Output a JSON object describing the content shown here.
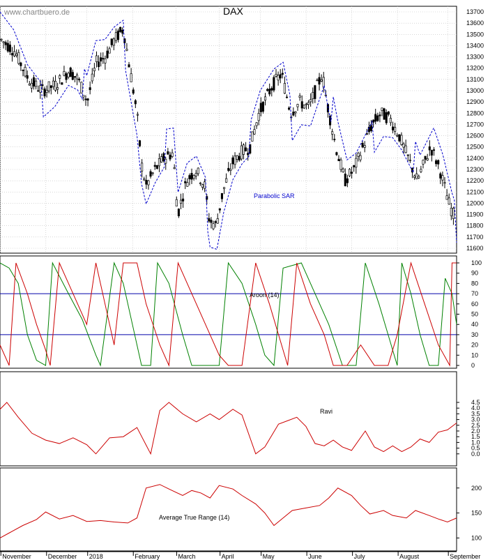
{
  "source": "www.chartbuero.de",
  "chart_data": [
    {
      "type": "line",
      "title": "DAX",
      "yticks": [
        11600,
        11700,
        11800,
        11900,
        12000,
        12100,
        12200,
        12300,
        12400,
        12500,
        12600,
        12700,
        12800,
        12900,
        13000,
        13100,
        13200,
        13300,
        13400,
        13500,
        13600,
        13700
      ],
      "ylim": [
        11600,
        13700
      ],
      "xcategories": [
        "November",
        "December",
        "2018",
        "February",
        "March",
        "April",
        "May",
        "June",
        "July",
        "August",
        "September"
      ],
      "annotation": "Parabolic SAR",
      "grid": true
    },
    {
      "type": "line",
      "annotation": "Aroon (14)",
      "yticks": [
        0,
        10,
        20,
        30,
        40,
        50,
        60,
        70,
        80,
        90,
        100
      ],
      "ylim": [
        0,
        100
      ],
      "reference_lines": [
        70,
        30
      ],
      "series": [
        {
          "color": "#008000",
          "points": [
            [
              0,
              100
            ],
            [
              0.02,
              95
            ],
            [
              0.04,
              80
            ],
            [
              0.06,
              30
            ],
            [
              0.08,
              5
            ],
            [
              0.1,
              0
            ],
            [
              0.115,
              100
            ],
            [
              0.15,
              70
            ],
            [
              0.18,
              45
            ],
            [
              0.21,
              10
            ],
            [
              0.22,
              0
            ],
            [
              0.25,
              100
            ],
            [
              0.27,
              80
            ],
            [
              0.29,
              40
            ],
            [
              0.31,
              0
            ],
            [
              0.33,
              0
            ],
            [
              0.345,
              100
            ],
            [
              0.37,
              80
            ],
            [
              0.4,
              30
            ],
            [
              0.42,
              0
            ],
            [
              0.48,
              0
            ],
            [
              0.5,
              100
            ],
            [
              0.53,
              80
            ],
            [
              0.56,
              40
            ],
            [
              0.58,
              10
            ],
            [
              0.6,
              0
            ],
            [
              0.62,
              95
            ],
            [
              0.66,
              100
            ],
            [
              0.69,
              70
            ],
            [
              0.72,
              40
            ],
            [
              0.75,
              0
            ],
            [
              0.78,
              0
            ],
            [
              0.8,
              100
            ],
            [
              0.83,
              60
            ],
            [
              0.85,
              30
            ],
            [
              0.87,
              0
            ],
            [
              0.88,
              100
            ],
            [
              0.9,
              70
            ],
            [
              0.92,
              30
            ],
            [
              0.94,
              0
            ],
            [
              0.96,
              0
            ],
            [
              0.975,
              85
            ],
            [
              0.99,
              70
            ],
            [
              1,
              40
            ]
          ]
        },
        {
          "color": "#cc0000",
          "points": [
            [
              0,
              20
            ],
            [
              0.02,
              0
            ],
            [
              0.035,
              100
            ],
            [
              0.06,
              70
            ],
            [
              0.08,
              40
            ],
            [
              0.1,
              15
            ],
            [
              0.11,
              0
            ],
            [
              0.13,
              100
            ],
            [
              0.16,
              70
            ],
            [
              0.19,
              40
            ],
            [
              0.21,
              100
            ],
            [
              0.23,
              60
            ],
            [
              0.25,
              20
            ],
            [
              0.27,
              100
            ],
            [
              0.3,
              100
            ],
            [
              0.32,
              60
            ],
            [
              0.35,
              20
            ],
            [
              0.37,
              0
            ],
            [
              0.39,
              100
            ],
            [
              0.42,
              70
            ],
            [
              0.45,
              40
            ],
            [
              0.48,
              10
            ],
            [
              0.5,
              0
            ],
            [
              0.53,
              0
            ],
            [
              0.56,
              100
            ],
            [
              0.59,
              60
            ],
            [
              0.61,
              30
            ],
            [
              0.63,
              0
            ],
            [
              0.65,
              100
            ],
            [
              0.68,
              60
            ],
            [
              0.71,
              30
            ],
            [
              0.73,
              0
            ],
            [
              0.76,
              0
            ],
            [
              0.79,
              20
            ],
            [
              0.82,
              0
            ],
            [
              0.85,
              0
            ],
            [
              0.87,
              30
            ],
            [
              0.9,
              100
            ],
            [
              0.93,
              60
            ],
            [
              0.96,
              20
            ],
            [
              0.985,
              0
            ],
            [
              0.99,
              100
            ],
            [
              1,
              100
            ]
          ]
        }
      ]
    },
    {
      "type": "line",
      "annotation": "Ravi",
      "yticks": [
        0.0,
        0.5,
        1.0,
        1.5,
        2.0,
        2.5,
        3.0,
        3.5,
        4.0,
        4.5
      ],
      "ylim": [
        -0.5,
        4.5
      ],
      "series": [
        {
          "color": "#cc0000",
          "points": [
            [
              0,
              3.9
            ],
            [
              0.015,
              4.5
            ],
            [
              0.04,
              3.2
            ],
            [
              0.07,
              1.8
            ],
            [
              0.1,
              1.2
            ],
            [
              0.13,
              0.9
            ],
            [
              0.16,
              1.4
            ],
            [
              0.19,
              0.8
            ],
            [
              0.21,
              0.0
            ],
            [
              0.24,
              1.4
            ],
            [
              0.27,
              1.5
            ],
            [
              0.3,
              2.3
            ],
            [
              0.33,
              0.0
            ],
            [
              0.35,
              3.8
            ],
            [
              0.37,
              4.5
            ],
            [
              0.4,
              3.5
            ],
            [
              0.43,
              2.8
            ],
            [
              0.46,
              3.5
            ],
            [
              0.48,
              3.0
            ],
            [
              0.51,
              3.9
            ],
            [
              0.53,
              3.4
            ],
            [
              0.56,
              0.0
            ],
            [
              0.58,
              0.6
            ],
            [
              0.61,
              2.6
            ],
            [
              0.63,
              2.9
            ],
            [
              0.65,
              3.2
            ],
            [
              0.67,
              2.4
            ],
            [
              0.69,
              0.9
            ],
            [
              0.71,
              0.7
            ],
            [
              0.73,
              1.2
            ],
            [
              0.75,
              0.6
            ],
            [
              0.77,
              0.3
            ],
            [
              0.8,
              2.0
            ],
            [
              0.82,
              0.6
            ],
            [
              0.84,
              0.2
            ],
            [
              0.86,
              0.7
            ],
            [
              0.88,
              0.2
            ],
            [
              0.9,
              0.6
            ],
            [
              0.92,
              1.3
            ],
            [
              0.94,
              1.0
            ],
            [
              0.96,
              1.9
            ],
            [
              0.98,
              2.1
            ],
            [
              1,
              2.7
            ]
          ]
        }
      ]
    },
    {
      "type": "line",
      "annotation": "Average True Range (14)",
      "yticks": [
        100,
        150,
        200
      ],
      "ylim": [
        95,
        215
      ],
      "series": [
        {
          "color": "#cc0000",
          "points": [
            [
              0,
              100
            ],
            [
              0.02,
              110
            ],
            [
              0.05,
              125
            ],
            [
              0.08,
              137
            ],
            [
              0.1,
              152
            ],
            [
              0.13,
              138
            ],
            [
              0.16,
              145
            ],
            [
              0.19,
              133
            ],
            [
              0.22,
              135
            ],
            [
              0.25,
              132
            ],
            [
              0.28,
              130
            ],
            [
              0.3,
              140
            ],
            [
              0.32,
              200
            ],
            [
              0.35,
              207
            ],
            [
              0.37,
              198
            ],
            [
              0.4,
              185
            ],
            [
              0.42,
              195
            ],
            [
              0.44,
              190
            ],
            [
              0.46,
              180
            ],
            [
              0.48,
              205
            ],
            [
              0.51,
              198
            ],
            [
              0.53,
              185
            ],
            [
              0.56,
              168
            ],
            [
              0.58,
              150
            ],
            [
              0.6,
              125
            ],
            [
              0.62,
              140
            ],
            [
              0.64,
              155
            ],
            [
              0.67,
              160
            ],
            [
              0.7,
              165
            ],
            [
              0.72,
              180
            ],
            [
              0.74,
              200
            ],
            [
              0.77,
              185
            ],
            [
              0.79,
              165
            ],
            [
              0.81,
              148
            ],
            [
              0.84,
              155
            ],
            [
              0.86,
              145
            ],
            [
              0.89,
              140
            ],
            [
              0.91,
              155
            ],
            [
              0.94,
              145
            ],
            [
              0.96,
              138
            ],
            [
              0.98,
              132
            ],
            [
              1,
              140
            ]
          ]
        }
      ]
    }
  ]
}
